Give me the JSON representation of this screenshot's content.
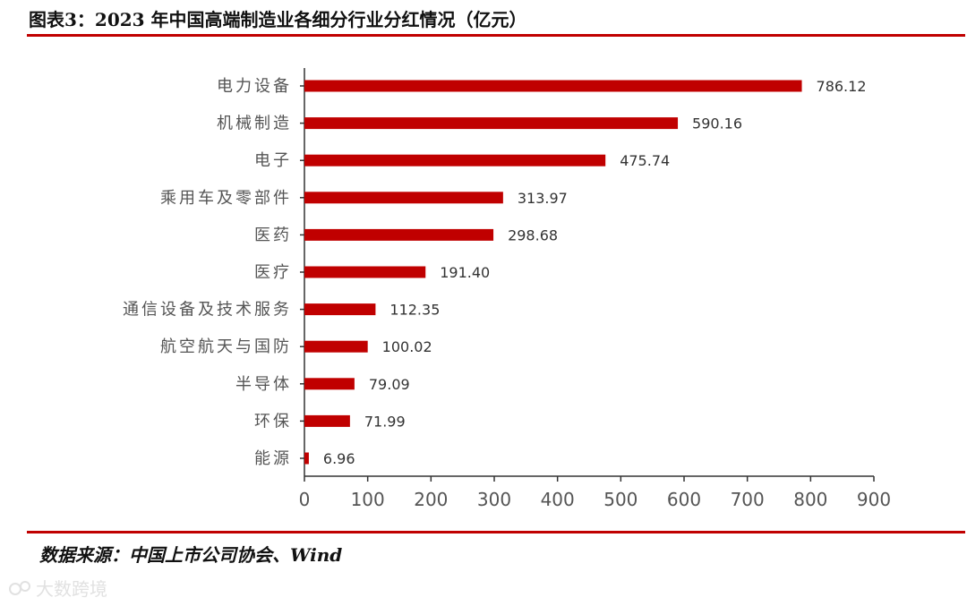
{
  "header": {
    "title": "图表3：2023 年中国高端制造业各细分行业分红情况（亿元）"
  },
  "footer": {
    "source": "数据来源：中国上市公司协会、Wind",
    "watermark": "大数跨境"
  },
  "colors": {
    "bar": "#c00000",
    "rule": "#c00000",
    "axis": "#333333"
  },
  "chart_data": {
    "type": "bar",
    "orientation": "horizontal",
    "categories": [
      "电力设备",
      "机械制造",
      "电子",
      "乘用车及零部件",
      "医药",
      "医疗",
      "通信设备及技术服务",
      "航空航天与国防",
      "半导体",
      "环保",
      "能源"
    ],
    "values": [
      786.12,
      590.16,
      475.74,
      313.97,
      298.68,
      191.4,
      112.35,
      100.02,
      79.09,
      71.99,
      6.96
    ],
    "value_labels": [
      "786.12",
      "590.16",
      "475.74",
      "313.97",
      "298.68",
      "191.40",
      "112.35",
      "100.02",
      "79.09",
      "71.99",
      "6.96"
    ],
    "xlim": [
      0,
      900
    ],
    "xticks": [
      0,
      100,
      200,
      300,
      400,
      500,
      600,
      700,
      800,
      900
    ],
    "xtick_labels": [
      "0",
      "100",
      "200",
      "300",
      "400",
      "500",
      "600",
      "700",
      "800",
      "900"
    ],
    "grid": false,
    "legend": "none"
  }
}
